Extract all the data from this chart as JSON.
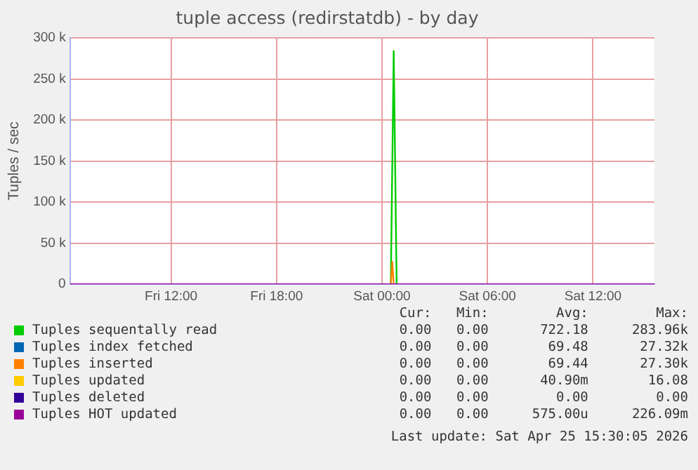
{
  "chart_data": {
    "type": "line",
    "title": "tuple access (redirstatdb) - by day",
    "ylabel": "Tuples / sec",
    "xlim": [
      "2026-04-24T06:15",
      "2026-04-25T15:30"
    ],
    "xticks": [
      {
        "value": "2026-04-24T12:00",
        "label": "Fri 12:00"
      },
      {
        "value": "2026-04-24T18:00",
        "label": "Fri 18:00"
      },
      {
        "value": "2026-04-25T00:00",
        "label": "Sat 00:00"
      },
      {
        "value": "2026-04-25T06:00",
        "label": "Sat 06:00"
      },
      {
        "value": "2026-04-25T12:00",
        "label": "Sat 12:00"
      }
    ],
    "ylim": [
      0,
      300000
    ],
    "yticks": [
      {
        "value": 0,
        "label": "0"
      },
      {
        "value": 50000,
        "label": "50 k"
      },
      {
        "value": 100000,
        "label": "100 k"
      },
      {
        "value": 150000,
        "label": "150 k"
      },
      {
        "value": 200000,
        "label": "200 k"
      },
      {
        "value": 250000,
        "label": "250 k"
      },
      {
        "value": 300000,
        "label": "300 k"
      }
    ],
    "grid": true,
    "legend": "bottom",
    "marker": "none",
    "series": [
      {
        "name": "Tuples sequentally read",
        "color": "#00cc00",
        "x": [
          "2026-04-25T00:30",
          "2026-04-25T00:40",
          "2026-04-25T00:50"
        ],
        "values": [
          0,
          284000,
          0
        ]
      },
      {
        "name": "Tuples index fetched",
        "color": "#0066b3"
      },
      {
        "name": "Tuples inserted",
        "color": "#ff8000",
        "x": [
          "2026-04-25T00:30",
          "2026-04-25T00:35",
          "2026-04-25T00:40"
        ],
        "values": [
          0,
          27300,
          0
        ]
      },
      {
        "name": "Tuples updated",
        "color": "#ffcc00"
      },
      {
        "name": "Tuples deleted",
        "color": "#330099"
      },
      {
        "name": "Tuples HOT updated",
        "color": "#990099",
        "x": [
          "2026-04-24T06:15",
          "2026-04-25T15:30"
        ],
        "values": [
          0,
          0
        ]
      }
    ],
    "annotations": [
      "Cur:",
      "Min:",
      "Avg:",
      "Max:",
      "0.00",
      "0.00",
      "722.18",
      "283.96k",
      "0.00",
      "0.00",
      "69.48",
      "27.32k",
      "0.00",
      "0.00",
      "69.44",
      "27.30k",
      "0.00",
      "0.00",
      "40.90m",
      "16.08",
      "0.00",
      "0.00",
      "0.00",
      "0.00",
      "0.00",
      "0.00",
      "575.00u",
      "226.09m",
      "Last update: Sat Apr 25 15:30:05 2026"
    ]
  }
}
